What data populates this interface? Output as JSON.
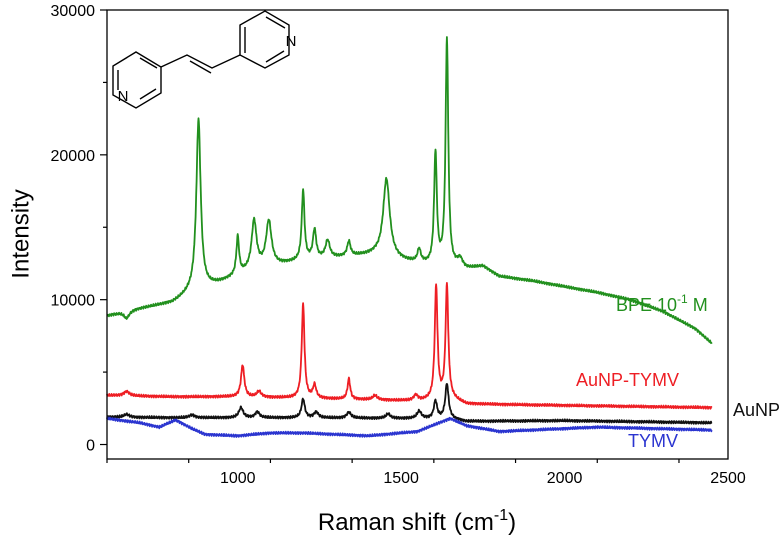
{
  "chart_data": {
    "type": "line",
    "xlabel": "Raman shift",
    "xlabel_unit": "(cm",
    "xlabel_unit_sup": "-1",
    "xlabel_unit_close": ")",
    "ylabel": "Intensity",
    "xlim": [
      600,
      2500
    ],
    "ylim": [
      -1000,
      30000
    ],
    "x_ticks": [
      1000,
      1500,
      2000,
      2500
    ],
    "y_ticks": [
      0,
      10000,
      20000,
      30000
    ],
    "x_minor_step": 250,
    "y_minor_step": 5000,
    "grid": false,
    "series": [
      {
        "name": "BPE 10-1 M",
        "label_main": "BPE 10",
        "label_sup": "-1",
        "label_tail": " M",
        "color": "#22901e",
        "baseline": [
          [
            600,
            8900
          ],
          [
            700,
            9400
          ],
          [
            800,
            9800
          ],
          [
            850,
            10400
          ],
          [
            950,
            11200
          ],
          [
            1050,
            12100
          ],
          [
            1200,
            12700
          ],
          [
            1350,
            13000
          ],
          [
            1420,
            13100
          ],
          [
            1500,
            12700
          ],
          [
            1580,
            12400
          ],
          [
            1700,
            12100
          ],
          [
            1750,
            12300
          ],
          [
            1800,
            11600
          ],
          [
            1900,
            11300
          ],
          [
            2000,
            10900
          ],
          [
            2100,
            10500
          ],
          [
            2200,
            10000
          ],
          [
            2300,
            9200
          ],
          [
            2400,
            8000
          ],
          [
            2450,
            7000
          ]
        ],
        "peaks": [
          [
            660,
            -500,
            10
          ],
          [
            880,
            11800,
            8
          ],
          [
            1000,
            2600,
            5
          ],
          [
            1050,
            3300,
            9
          ],
          [
            1095,
            3100,
            10
          ],
          [
            1200,
            4800,
            5
          ],
          [
            1235,
            2000,
            6
          ],
          [
            1275,
            1200,
            8
          ],
          [
            1340,
            1000,
            6
          ],
          [
            1455,
            5400,
            12
          ],
          [
            1555,
            900,
            6
          ],
          [
            1605,
            7700,
            5
          ],
          [
            1640,
            15700,
            5
          ],
          [
            1680,
            600,
            10
          ]
        ]
      },
      {
        "name": "AuNP-TYMV",
        "color": "#ee1e24",
        "baseline": [
          [
            600,
            3400
          ],
          [
            800,
            3300
          ],
          [
            1000,
            3300
          ],
          [
            1400,
            3100
          ],
          [
            1550,
            3000
          ],
          [
            1650,
            3200
          ],
          [
            1700,
            2800
          ],
          [
            2000,
            2700
          ],
          [
            2450,
            2550
          ]
        ],
        "peaks": [
          [
            660,
            300,
            10
          ],
          [
            1015,
            2200,
            6
          ],
          [
            1065,
            400,
            8
          ],
          [
            1200,
            6500,
            5
          ],
          [
            1235,
            900,
            6
          ],
          [
            1340,
            1400,
            5
          ],
          [
            1420,
            300,
            8
          ],
          [
            1545,
            400,
            8
          ],
          [
            1607,
            7800,
            5
          ],
          [
            1640,
            7800,
            5
          ]
        ]
      },
      {
        "name": "AuNP",
        "color": "#111111",
        "baseline": [
          [
            600,
            1900
          ],
          [
            800,
            1850
          ],
          [
            1000,
            1850
          ],
          [
            1200,
            1850
          ],
          [
            1550,
            1800
          ],
          [
            1650,
            1800
          ],
          [
            1700,
            1600
          ],
          [
            2000,
            1650
          ],
          [
            2450,
            1500
          ]
        ],
        "peaks": [
          [
            660,
            200,
            10
          ],
          [
            860,
            200,
            10
          ],
          [
            1010,
            700,
            8
          ],
          [
            1060,
            400,
            8
          ],
          [
            1200,
            1300,
            6
          ],
          [
            1240,
            400,
            8
          ],
          [
            1340,
            400,
            8
          ],
          [
            1460,
            300,
            8
          ],
          [
            1555,
            500,
            8
          ],
          [
            1605,
            1200,
            6
          ],
          [
            1640,
            2400,
            6
          ]
        ]
      },
      {
        "name": "TYMV",
        "color": "#2b35d0",
        "baseline": [
          [
            600,
            1800
          ],
          [
            700,
            1500
          ],
          [
            760,
            1200
          ],
          [
            810,
            1700
          ],
          [
            860,
            1100
          ],
          [
            900,
            700
          ],
          [
            1000,
            600
          ],
          [
            1100,
            800
          ],
          [
            1200,
            800
          ],
          [
            1300,
            700
          ],
          [
            1400,
            600
          ],
          [
            1550,
            900
          ],
          [
            1650,
            1800
          ],
          [
            1700,
            1300
          ],
          [
            1800,
            900
          ],
          [
            1900,
            1000
          ],
          [
            2100,
            1200
          ],
          [
            2450,
            1000
          ]
        ],
        "peaks": [
          [
            1650,
            0,
            10
          ]
        ]
      }
    ]
  },
  "molecule": {
    "atom_n1": "N",
    "atom_n2": "N"
  }
}
